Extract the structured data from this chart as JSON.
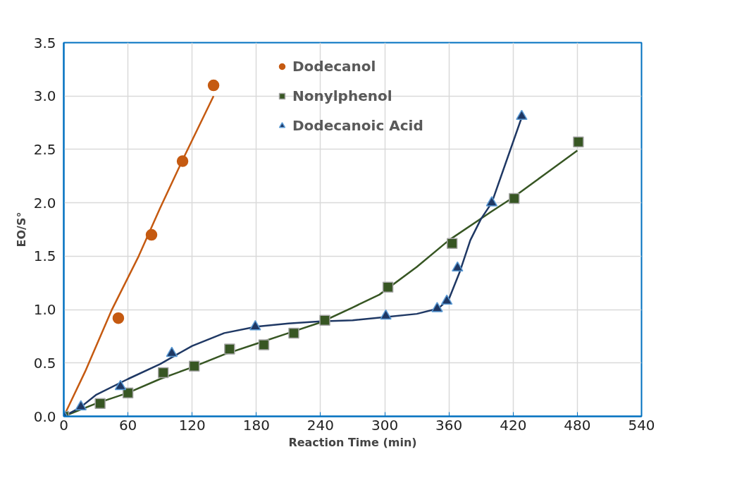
{
  "chart_data": {
    "type": "scatter",
    "xlabel": "Reaction Time (min)",
    "ylabel": "EO/S°",
    "xlim": [
      0,
      540
    ],
    "ylim": [
      0,
      3.5
    ],
    "xticks": [
      0,
      60,
      120,
      180,
      240,
      300,
      360,
      420,
      480,
      540
    ],
    "yticks": [
      {
        "value": 0,
        "label": "0.0"
      },
      {
        "value": 0.5,
        "label": "0.5"
      },
      {
        "value": 1,
        "label": "1.0"
      },
      {
        "value": 1.5,
        "label": "1.5"
      },
      {
        "value": 2,
        "label": "2.0"
      },
      {
        "value": 2.5,
        "label": "2.5"
      },
      {
        "value": 3,
        "label": "3.0"
      },
      {
        "value": 3.5,
        "label": "3.5"
      }
    ],
    "grid": true,
    "legend": "top",
    "series": [
      {
        "name": "Dodecanol",
        "color": "#c55a11",
        "marker": "circle",
        "x": [
          51,
          82,
          111,
          140
        ],
        "values": [
          0.92,
          1.7,
          2.39,
          3.1
        ]
      },
      {
        "name": "Nonylphenol",
        "color": "#375623",
        "marker": "square",
        "x": [
          0,
          34,
          60,
          93,
          122,
          155,
          187,
          215,
          244,
          303,
          363,
          421,
          481
        ],
        "values": [
          0,
          0.12,
          0.22,
          0.41,
          0.47,
          0.63,
          0.67,
          0.78,
          0.9,
          1.21,
          1.62,
          2.04,
          2.57
        ]
      },
      {
        "name": "Dodecanoic Acid",
        "color": "#1f3864",
        "marker": "triangle",
        "x": [
          0,
          16,
          53,
          101,
          179,
          301,
          349,
          358,
          368,
          400,
          428
        ],
        "values": [
          0,
          0.09,
          0.28,
          0.59,
          0.84,
          0.94,
          1.01,
          1.08,
          1.39,
          2.0,
          2.81
        ]
      },
      {
        "type": "line",
        "color": "#c55a11",
        "x": [
          0,
          20,
          45,
          70,
          90,
          111,
          140
        ],
        "values": [
          0,
          0.42,
          1.0,
          1.5,
          1.95,
          2.4,
          3.0
        ]
      },
      {
        "type": "line",
        "color": "#375623",
        "x": [
          0,
          30,
          60,
          90,
          120,
          150,
          180,
          210,
          240,
          270,
          295,
          330,
          360,
          400,
          420,
          450,
          480
        ],
        "values": [
          0,
          0.12,
          0.22,
          0.35,
          0.46,
          0.58,
          0.68,
          0.78,
          0.88,
          1.02,
          1.14,
          1.4,
          1.65,
          1.92,
          2.05,
          2.27,
          2.49
        ]
      },
      {
        "type": "line",
        "color": "#1f3864",
        "x": [
          0,
          15,
          30,
          60,
          90,
          120,
          150,
          180,
          210,
          240,
          270,
          300,
          330,
          350,
          360,
          370,
          380,
          390,
          400,
          428
        ],
        "values": [
          0,
          0.08,
          0.2,
          0.35,
          0.49,
          0.66,
          0.78,
          0.84,
          0.87,
          0.89,
          0.9,
          0.93,
          0.96,
          1.01,
          1.1,
          1.35,
          1.65,
          1.85,
          2.0,
          2.8
        ]
      }
    ]
  }
}
